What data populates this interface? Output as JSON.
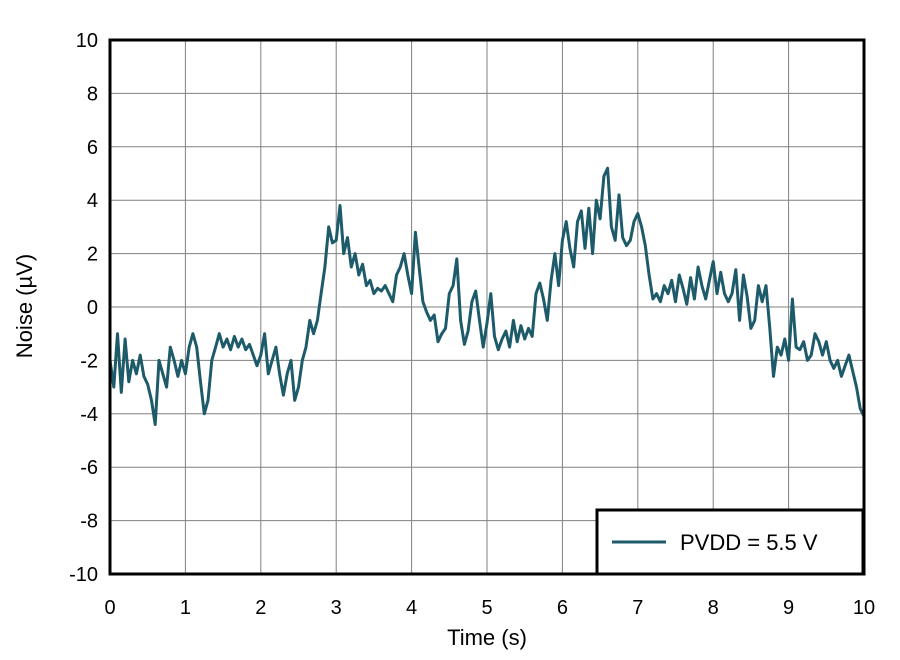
{
  "chart_data": {
    "type": "line",
    "xlabel": "Time (s)",
    "ylabel": "Noise (µV)",
    "xlim": [
      0,
      10
    ],
    "ylim": [
      -10,
      10
    ],
    "xticks": [
      0,
      1,
      2,
      3,
      4,
      5,
      6,
      7,
      8,
      9,
      10
    ],
    "yticks": [
      -10,
      -8,
      -6,
      -4,
      -2,
      0,
      2,
      4,
      6,
      8,
      10
    ],
    "grid": true,
    "legend_position": "bottom-right",
    "series": [
      {
        "name": "PVDD = 5.5 V",
        "color": "#1d5a6a",
        "points": [
          [
            0.0,
            -2.0
          ],
          [
            0.05,
            -3.0
          ],
          [
            0.1,
            -1.0
          ],
          [
            0.15,
            -3.2
          ],
          [
            0.2,
            -1.2
          ],
          [
            0.25,
            -2.8
          ],
          [
            0.3,
            -2.0
          ],
          [
            0.35,
            -2.5
          ],
          [
            0.4,
            -1.8
          ],
          [
            0.45,
            -2.6
          ],
          [
            0.5,
            -2.9
          ],
          [
            0.55,
            -3.5
          ],
          [
            0.6,
            -4.4
          ],
          [
            0.65,
            -2.0
          ],
          [
            0.7,
            -2.5
          ],
          [
            0.75,
            -3.0
          ],
          [
            0.8,
            -1.5
          ],
          [
            0.85,
            -2.0
          ],
          [
            0.9,
            -2.6
          ],
          [
            0.95,
            -2.0
          ],
          [
            1.0,
            -2.5
          ],
          [
            1.05,
            -1.5
          ],
          [
            1.1,
            -1.0
          ],
          [
            1.15,
            -1.5
          ],
          [
            1.2,
            -2.8
          ],
          [
            1.25,
            -4.0
          ],
          [
            1.3,
            -3.5
          ],
          [
            1.35,
            -2.0
          ],
          [
            1.4,
            -1.5
          ],
          [
            1.45,
            -1.0
          ],
          [
            1.5,
            -1.5
          ],
          [
            1.55,
            -1.2
          ],
          [
            1.6,
            -1.6
          ],
          [
            1.65,
            -1.1
          ],
          [
            1.7,
            -1.5
          ],
          [
            1.75,
            -1.2
          ],
          [
            1.8,
            -1.6
          ],
          [
            1.85,
            -1.4
          ],
          [
            1.9,
            -1.8
          ],
          [
            1.95,
            -2.2
          ],
          [
            2.0,
            -1.8
          ],
          [
            2.05,
            -1.0
          ],
          [
            2.1,
            -2.5
          ],
          [
            2.15,
            -2.0
          ],
          [
            2.2,
            -1.5
          ],
          [
            2.25,
            -2.5
          ],
          [
            2.3,
            -3.3
          ],
          [
            2.35,
            -2.5
          ],
          [
            2.4,
            -2.0
          ],
          [
            2.45,
            -3.5
          ],
          [
            2.5,
            -3.0
          ],
          [
            2.55,
            -2.0
          ],
          [
            2.6,
            -1.5
          ],
          [
            2.65,
            -0.5
          ],
          [
            2.7,
            -1.0
          ],
          [
            2.75,
            -0.5
          ],
          [
            2.8,
            0.5
          ],
          [
            2.85,
            1.5
          ],
          [
            2.9,
            3.0
          ],
          [
            2.95,
            2.4
          ],
          [
            3.0,
            2.5
          ],
          [
            3.05,
            3.8
          ],
          [
            3.1,
            2.0
          ],
          [
            3.15,
            2.6
          ],
          [
            3.2,
            1.5
          ],
          [
            3.25,
            2.0
          ],
          [
            3.3,
            1.2
          ],
          [
            3.35,
            1.6
          ],
          [
            3.4,
            0.8
          ],
          [
            3.45,
            1.0
          ],
          [
            3.5,
            0.5
          ],
          [
            3.55,
            0.7
          ],
          [
            3.6,
            0.6
          ],
          [
            3.65,
            0.8
          ],
          [
            3.7,
            0.5
          ],
          [
            3.75,
            0.2
          ],
          [
            3.8,
            1.2
          ],
          [
            3.85,
            1.5
          ],
          [
            3.9,
            2.0
          ],
          [
            3.95,
            1.2
          ],
          [
            4.0,
            0.5
          ],
          [
            4.05,
            2.8
          ],
          [
            4.1,
            1.5
          ],
          [
            4.15,
            0.2
          ],
          [
            4.2,
            -0.2
          ],
          [
            4.25,
            -0.5
          ],
          [
            4.3,
            -0.3
          ],
          [
            4.35,
            -1.3
          ],
          [
            4.4,
            -1.0
          ],
          [
            4.45,
            -0.8
          ],
          [
            4.5,
            0.5
          ],
          [
            4.55,
            0.8
          ],
          [
            4.6,
            1.8
          ],
          [
            4.65,
            -0.5
          ],
          [
            4.7,
            -1.4
          ],
          [
            4.75,
            -0.9
          ],
          [
            4.8,
            0.2
          ],
          [
            4.85,
            0.6
          ],
          [
            4.9,
            -0.5
          ],
          [
            4.95,
            -1.5
          ],
          [
            5.0,
            -0.6
          ],
          [
            5.05,
            0.5
          ],
          [
            5.1,
            -1.1
          ],
          [
            5.15,
            -1.6
          ],
          [
            5.2,
            -1.2
          ],
          [
            5.25,
            -0.9
          ],
          [
            5.3,
            -1.5
          ],
          [
            5.35,
            -0.5
          ],
          [
            5.4,
            -1.3
          ],
          [
            5.45,
            -0.7
          ],
          [
            5.5,
            -1.2
          ],
          [
            5.55,
            -0.8
          ],
          [
            5.6,
            -1.1
          ],
          [
            5.65,
            0.5
          ],
          [
            5.7,
            0.9
          ],
          [
            5.75,
            0.3
          ],
          [
            5.8,
            -0.5
          ],
          [
            5.85,
            1.0
          ],
          [
            5.9,
            2.0
          ],
          [
            5.95,
            0.8
          ],
          [
            6.0,
            2.5
          ],
          [
            6.05,
            3.2
          ],
          [
            6.1,
            2.2
          ],
          [
            6.15,
            1.5
          ],
          [
            6.2,
            3.2
          ],
          [
            6.25,
            3.6
          ],
          [
            6.3,
            2.2
          ],
          [
            6.35,
            3.7
          ],
          [
            6.4,
            2.0
          ],
          [
            6.45,
            4.0
          ],
          [
            6.5,
            3.3
          ],
          [
            6.55,
            4.9
          ],
          [
            6.6,
            5.2
          ],
          [
            6.65,
            3.0
          ],
          [
            6.7,
            2.5
          ],
          [
            6.75,
            4.2
          ],
          [
            6.8,
            2.6
          ],
          [
            6.85,
            2.3
          ],
          [
            6.9,
            2.5
          ],
          [
            6.95,
            3.2
          ],
          [
            7.0,
            3.5
          ],
          [
            7.05,
            3.0
          ],
          [
            7.1,
            2.3
          ],
          [
            7.15,
            1.2
          ],
          [
            7.2,
            0.3
          ],
          [
            7.25,
            0.5
          ],
          [
            7.3,
            0.2
          ],
          [
            7.35,
            0.8
          ],
          [
            7.4,
            0.5
          ],
          [
            7.45,
            1.0
          ],
          [
            7.5,
            0.2
          ],
          [
            7.55,
            1.2
          ],
          [
            7.6,
            0.7
          ],
          [
            7.65,
            0.1
          ],
          [
            7.7,
            1.1
          ],
          [
            7.75,
            0.3
          ],
          [
            7.8,
            1.5
          ],
          [
            7.85,
            0.8
          ],
          [
            7.9,
            0.3
          ],
          [
            7.95,
            1.0
          ],
          [
            8.0,
            1.7
          ],
          [
            8.05,
            0.5
          ],
          [
            8.1,
            1.3
          ],
          [
            8.15,
            0.5
          ],
          [
            8.2,
            0.2
          ],
          [
            8.25,
            0.5
          ],
          [
            8.3,
            1.4
          ],
          [
            8.35,
            -0.5
          ],
          [
            8.4,
            1.2
          ],
          [
            8.45,
            0.4
          ],
          [
            8.5,
            -0.8
          ],
          [
            8.55,
            -0.5
          ],
          [
            8.6,
            0.8
          ],
          [
            8.65,
            0.2
          ],
          [
            8.7,
            0.8
          ],
          [
            8.75,
            -0.8
          ],
          [
            8.8,
            -2.6
          ],
          [
            8.85,
            -1.5
          ],
          [
            8.9,
            -1.8
          ],
          [
            8.95,
            -1.2
          ],
          [
            9.0,
            -2.0
          ],
          [
            9.05,
            0.3
          ],
          [
            9.1,
            -1.5
          ],
          [
            9.15,
            -1.6
          ],
          [
            9.2,
            -1.3
          ],
          [
            9.25,
            -2.0
          ],
          [
            9.3,
            -1.8
          ],
          [
            9.35,
            -1.0
          ],
          [
            9.4,
            -1.3
          ],
          [
            9.45,
            -1.8
          ],
          [
            9.5,
            -1.3
          ],
          [
            9.55,
            -2.0
          ],
          [
            9.6,
            -2.3
          ],
          [
            9.65,
            -2.0
          ],
          [
            9.7,
            -2.6
          ],
          [
            9.75,
            -2.2
          ],
          [
            9.8,
            -1.8
          ],
          [
            9.85,
            -2.4
          ],
          [
            9.9,
            -3.0
          ],
          [
            9.95,
            -3.8
          ],
          [
            10.0,
            -4.1
          ]
        ]
      }
    ]
  }
}
